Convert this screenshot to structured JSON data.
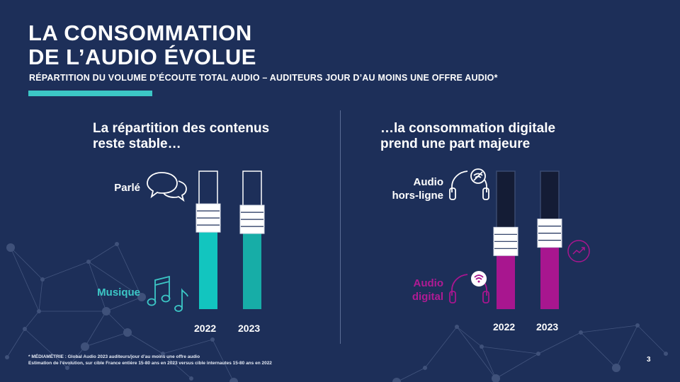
{
  "title_line1": "LA CONSOMMATION",
  "title_line2": "DE L’AUDIO ÉVOLUE",
  "subtitle": "RÉPARTITION DU VOLUME D’ÉCOUTE TOTAL AUDIO – AUDITEURS JOUR D’AU MOINS UNE OFFRE AUDIO*",
  "colors": {
    "background": "#1d2f59",
    "accent": "#3cc7c6",
    "musique_2022": "#12c5bf",
    "musique_2023": "#17ada7",
    "digital": "#a8168f",
    "hors_ligne": "#141c35",
    "parle": "#1d2f59"
  },
  "left_panel": {
    "heading_line1": "La répartition des contenus",
    "heading_line2": "reste stable…",
    "label_top": "Parlé",
    "label_bottom": "Musique",
    "icon_top": "speech-bubbles-icon",
    "icon_bottom": "music-notes-icon"
  },
  "right_panel": {
    "heading_line1": "…la consommation digitale",
    "heading_line2": "prend une part majeure",
    "label_top_line1": "Audio",
    "label_top_line2": "hors-ligne",
    "label_bottom_line1": "Audio",
    "label_bottom_line2": "digital",
    "icon_top": "headphones-offline-icon",
    "icon_bottom": "headphones-wifi-icon",
    "trend_icon": "trend-up-icon"
  },
  "chart_data": [
    {
      "type": "bar",
      "stacked": true,
      "categories": [
        "2022",
        "2023"
      ],
      "series": [
        {
          "name": "Musique",
          "values": [
            0.63,
            0.62
          ]
        },
        {
          "name": "Parlé",
          "values": [
            0.37,
            0.38
          ]
        }
      ],
      "ylim": [
        0,
        1
      ],
      "data_labels": false
    },
    {
      "type": "bar",
      "stacked": true,
      "categories": [
        "2022",
        "2023"
      ],
      "series": [
        {
          "name": "Audio digital",
          "values": [
            0.46,
            0.52
          ]
        },
        {
          "name": "Audio hors-ligne",
          "values": [
            0.54,
            0.48
          ]
        }
      ],
      "ylim": [
        0,
        1
      ],
      "data_labels": false
    }
  ],
  "footnote_line1": "* MÉDIAMÉTRIE : Global Audio 2023 auditeurs/jour d’au moins une offre audio",
  "footnote_line2": "Estimation de l’évolution, sur cible France entière 15-80 ans en 2023 versus cible internautes 15-80 ans en 2022",
  "page_number": "3"
}
